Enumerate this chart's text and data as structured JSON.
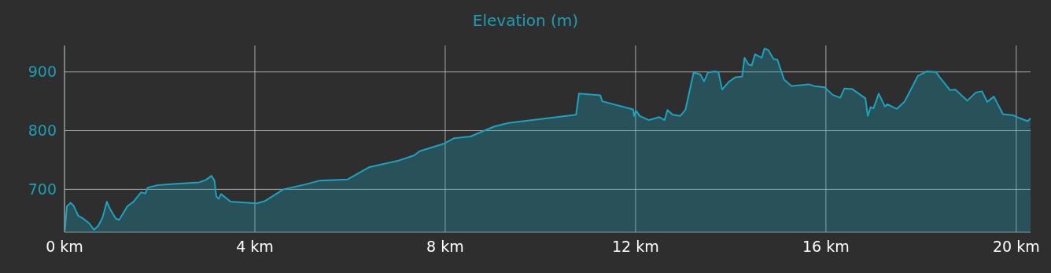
{
  "chart_data": {
    "type": "area",
    "title": "Elevation (m)",
    "xlim": [
      0,
      20.3
    ],
    "ylim": [
      627,
      945
    ],
    "xticks": [
      {
        "value": 0,
        "label": "0 km"
      },
      {
        "value": 4,
        "label": "4 km"
      },
      {
        "value": 8,
        "label": "8 km"
      },
      {
        "value": 12,
        "label": "12 km"
      },
      {
        "value": 16,
        "label": "16 km"
      },
      {
        "value": 20,
        "label": "20 km"
      }
    ],
    "yticks": [
      700,
      800,
      900
    ],
    "grid": true,
    "marker": "none",
    "line_style": "solid",
    "x": [
      0.01,
      0.05,
      0.13,
      0.19,
      0.29,
      0.38,
      0.52,
      0.62,
      0.71,
      0.8,
      0.89,
      0.96,
      1.08,
      1.15,
      1.32,
      1.45,
      1.61,
      1.7,
      1.75,
      1.95,
      2.23,
      2.83,
      2.97,
      3.09,
      3.15,
      3.19,
      3.24,
      3.29,
      3.49,
      4.04,
      4.21,
      4.6,
      5.04,
      5.37,
      5.95,
      6.41,
      7.02,
      7.35,
      7.46,
      7.98,
      8.18,
      8.53,
      9.03,
      9.33,
      10.75,
      10.81,
      11.26,
      11.3,
      11.95,
      11.97,
      12.01,
      12.09,
      12.28,
      12.5,
      12.61,
      12.67,
      12.78,
      12.94,
      13.05,
      13.22,
      13.36,
      13.44,
      13.52,
      13.66,
      13.74,
      13.82,
      13.96,
      14.1,
      14.24,
      14.29,
      14.37,
      14.44,
      14.51,
      14.65,
      14.71,
      14.79,
      14.9,
      14.98,
      15.12,
      15.28,
      15.64,
      15.75,
      15.97,
      16.14,
      16.3,
      16.39,
      16.55,
      16.83,
      16.88,
      16.94,
      17.0,
      17.11,
      17.24,
      17.29,
      17.49,
      17.65,
      17.93,
      18.12,
      18.31,
      18.39,
      18.61,
      18.72,
      18.97,
      19.15,
      19.28,
      19.39,
      19.53,
      19.72,
      19.94,
      20.08,
      20.24,
      20.3
    ],
    "series": [
      {
        "color": "#1ba3c0",
        "values": [
          631,
          671,
          677,
          672,
          655,
          651,
          642,
          631,
          638,
          652,
          679,
          666,
          650,
          648,
          671,
          679,
          695,
          693,
          703,
          707,
          709,
          712,
          716,
          723,
          715,
          688,
          684,
          692,
          679,
          676,
          680,
          700,
          708,
          715,
          717,
          738,
          749,
          758,
          765,
          778,
          787,
          790,
          807,
          813,
          827,
          863,
          860,
          850,
          836,
          825,
          834,
          825,
          818,
          823,
          818,
          835,
          827,
          825,
          836,
          899,
          896,
          884,
          899,
          901,
          900,
          870,
          883,
          891,
          892,
          924,
          913,
          911,
          930,
          924,
          940,
          937,
          922,
          921,
          887,
          876,
          879,
          876,
          874,
          861,
          856,
          872,
          871,
          855,
          825,
          840,
          838,
          863,
          841,
          845,
          837,
          849,
          893,
          901,
          900,
          891,
          869,
          870,
          851,
          865,
          867,
          849,
          858,
          828,
          826,
          821,
          816,
          821
        ]
      }
    ]
  }
}
